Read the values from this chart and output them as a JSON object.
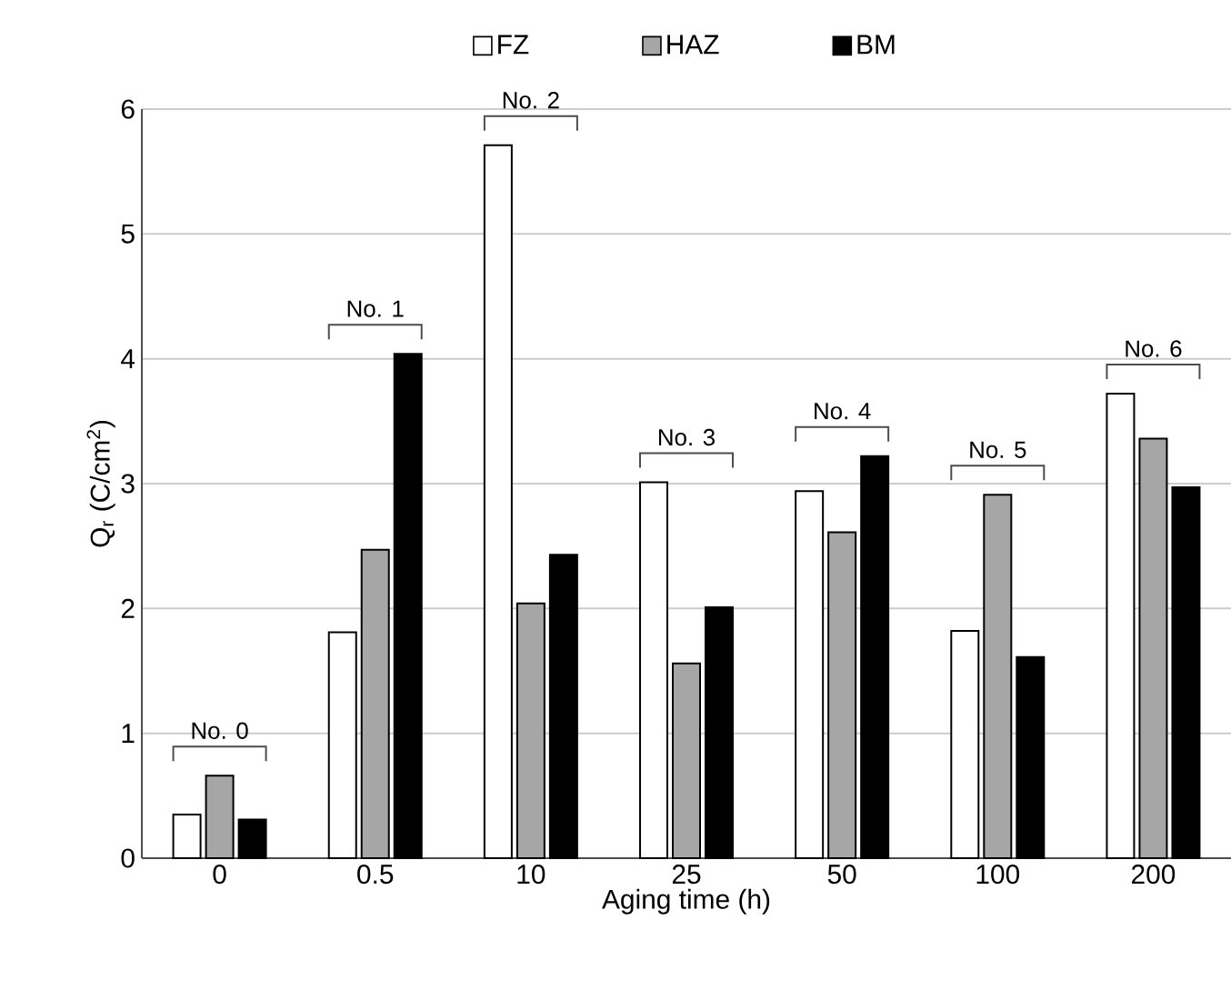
{
  "chart_data": {
    "type": "bar",
    "xlabel": "Aging time (h)",
    "ylabel": "Q$_{r}$ (C/cm$^{2}$)",
    "categories": [
      "0",
      "0.5",
      "10",
      "25",
      "50",
      "100",
      "200"
    ],
    "series": [
      {
        "name": "FZ",
        "color": "#ffffff",
        "values": [
          0.35,
          1.81,
          5.71,
          3.01,
          2.94,
          1.82,
          3.72
        ]
      },
      {
        "name": "HAZ",
        "color": "#a6a6a6",
        "values": [
          0.66,
          2.47,
          2.04,
          1.56,
          2.61,
          2.91,
          3.36
        ]
      },
      {
        "name": "BM",
        "color": "#000000",
        "values": [
          0.31,
          4.04,
          2.43,
          2.01,
          3.22,
          1.61,
          2.97
        ]
      }
    ],
    "ylim": [
      0,
      6
    ],
    "yticks": [
      0,
      1,
      2,
      3,
      4,
      5,
      6
    ],
    "grid": "y",
    "legend": "top",
    "annotations": [
      "No. 0",
      "No. 1",
      "No. 2",
      "No. 3",
      "No. 4",
      "No. 5",
      "No. 6"
    ]
  }
}
